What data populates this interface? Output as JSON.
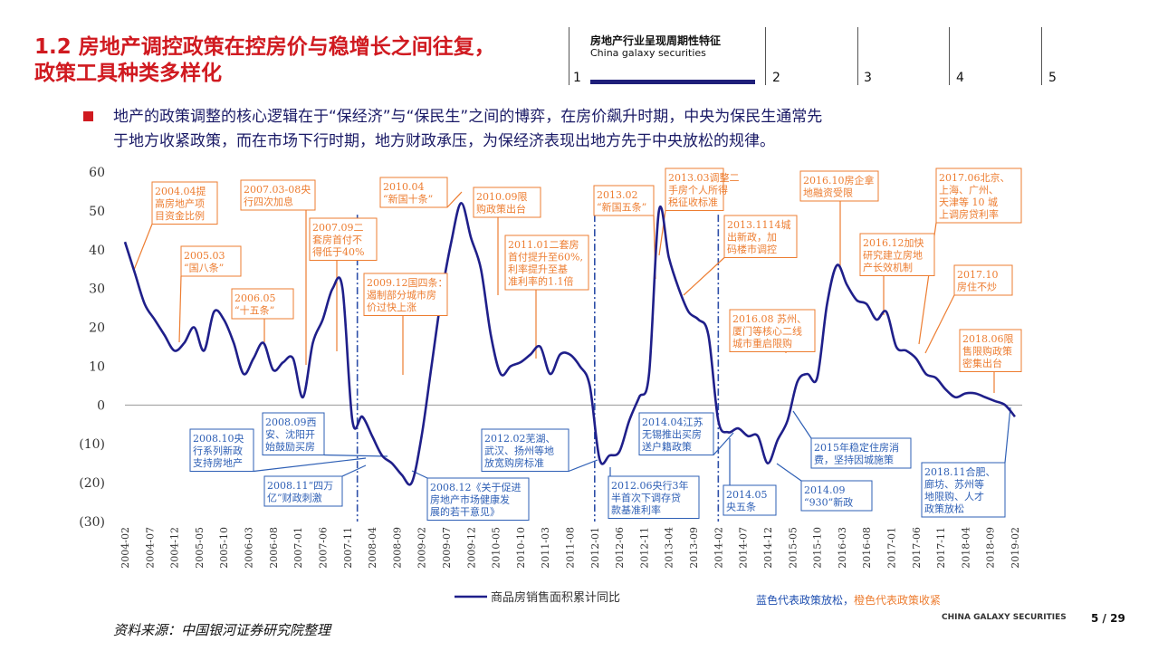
{
  "header": {
    "title_line1": "1.2 房地产调控政策在控房价与稳增长之间往复，",
    "title_line2": "政策工具种类多样化",
    "nav_title": "房地产行业呈现周期性特征",
    "nav_subtitle": "China galaxy securities",
    "nav_numbers": [
      "1",
      "2",
      "3",
      "4",
      "5"
    ]
  },
  "body": {
    "paragraph_line1": "地产的政策调整的核心逻辑在于“保经济”与“保民生”之间的博弈，在房价飙升时期，中央为保民生通常先",
    "paragraph_line2": "于地方收紧政策，而在市场下行时期，地方财政承压，为保经济表现出地方先于中央放松的规律。"
  },
  "footer": {
    "source": "资料来源：中国银河证券研究院整理",
    "note_blue": "蓝色代表政策放松，",
    "note_orange": "橙色代表政策收紧",
    "brand": "CHINA GALAXY SECURITIES",
    "page": "5  /  29"
  },
  "colors": {
    "line": "#1f1f8a",
    "tighten": "#ed7d31",
    "loosen": "#2e5fb5",
    "title": "#d01a20"
  },
  "chart_data": {
    "type": "line",
    "ylim": [
      -30,
      60
    ],
    "yticks": [
      60,
      50,
      40,
      30,
      20,
      10,
      0,
      -10,
      -20,
      -30
    ],
    "ytick_labels": [
      "60",
      "50",
      "40",
      "30",
      "20",
      "10",
      "0",
      "(10)",
      "(20)",
      "(30)"
    ],
    "x_tick_labels": [
      "2004-02",
      "2004-07",
      "2004-12",
      "2005-05",
      "2005-10",
      "2006-03",
      "2006-08",
      "2007-01",
      "2007-06",
      "2007-11",
      "2008-04",
      "2008-09",
      "2009-02",
      "2009-07",
      "2009-12",
      "2010-05",
      "2010-10",
      "2011-03",
      "2011-08",
      "2012-01",
      "2012-06",
      "2012-11",
      "2013-04",
      "2013-09",
      "2014-02",
      "2014-07",
      "2014-12",
      "2015-05",
      "2015-10",
      "2016-03",
      "2016-08",
      "2017-01",
      "2017-06",
      "2017-11",
      "2018-04",
      "2018-09",
      "2019-02"
    ],
    "legend": "商品房销售面积累计同比",
    "series": [
      {
        "name": "商品房销售面积累计同比",
        "x": [
          "2004-02",
          "2004-04",
          "2004-06",
          "2004-08",
          "2004-10",
          "2004-12",
          "2005-02",
          "2005-04",
          "2005-06",
          "2005-08",
          "2005-10",
          "2005-12",
          "2006-02",
          "2006-04",
          "2006-06",
          "2006-08",
          "2006-10",
          "2006-12",
          "2007-02",
          "2007-04",
          "2007-06",
          "2007-08",
          "2007-10",
          "2007-12",
          "2008-02",
          "2008-04",
          "2008-06",
          "2008-08",
          "2008-10",
          "2008-12",
          "2009-02",
          "2009-04",
          "2009-06",
          "2009-08",
          "2009-10",
          "2009-12",
          "2010-02",
          "2010-04",
          "2010-06",
          "2010-08",
          "2010-10",
          "2010-12",
          "2011-02",
          "2011-04",
          "2011-06",
          "2011-08",
          "2011-10",
          "2011-12",
          "2012-02",
          "2012-04",
          "2012-06",
          "2012-08",
          "2012-10",
          "2012-12",
          "2013-02",
          "2013-04",
          "2013-06",
          "2013-08",
          "2013-10",
          "2013-12",
          "2014-02",
          "2014-04",
          "2014-06",
          "2014-08",
          "2014-10",
          "2014-12",
          "2015-02",
          "2015-04",
          "2015-06",
          "2015-08",
          "2015-10",
          "2015-12",
          "2016-02",
          "2016-04",
          "2016-06",
          "2016-08",
          "2016-10",
          "2016-12",
          "2017-02",
          "2017-04",
          "2017-06",
          "2017-08",
          "2017-10",
          "2017-12",
          "2018-02",
          "2018-04",
          "2018-06",
          "2018-08",
          "2018-10",
          "2018-12",
          "2019-02"
        ],
        "values": [
          42,
          34,
          26,
          22,
          18,
          14,
          16,
          20,
          14,
          24,
          22,
          16,
          8,
          12,
          16,
          9,
          11,
          12,
          2,
          16,
          22,
          30,
          30,
          -4,
          -3,
          -8,
          -13,
          -15,
          -18,
          -20,
          -8,
          10,
          28,
          42,
          52,
          43,
          35,
          18,
          8,
          10,
          11,
          13,
          15,
          8,
          13,
          13,
          10,
          5,
          -14,
          -13,
          -12,
          -4,
          2,
          8,
          50,
          38,
          30,
          24,
          22,
          18,
          -4,
          -7,
          -6,
          -8,
          -8,
          -15,
          -9,
          -4,
          6,
          8,
          7,
          26,
          36,
          31,
          27,
          26,
          22,
          24,
          15,
          14,
          12,
          8,
          7,
          4,
          2,
          3,
          3,
          2,
          1,
          0,
          -3
        ]
      }
    ],
    "annotations_tighten": [
      {
        "lines": [
          "2004.04提",
          "高房地产项",
          "目资金比例"
        ]
      },
      {
        "lines": [
          "2005.03",
          "“国八条”"
        ]
      },
      {
        "lines": [
          "2006.05",
          "“十五条”"
        ]
      },
      {
        "lines": [
          "2007.03-08央",
          "行四次加息"
        ]
      },
      {
        "lines": [
          "2007.09二",
          "套房首付不",
          "得低于40%"
        ]
      },
      {
        "lines": [
          "2009.12国四条：",
          "遏制部分城市房",
          "价过快上涨"
        ]
      },
      {
        "lines": [
          "2010.04",
          "“新国十条”"
        ]
      },
      {
        "lines": [
          "2010.09限",
          "购政策出台"
        ]
      },
      {
        "lines": [
          "2011.01二套房",
          "首付提升至60%,",
          "利率提升至基",
          "准利率的1.1倍"
        ]
      },
      {
        "lines": [
          "2013.02",
          "“新国五条”"
        ]
      },
      {
        "lines": [
          "2013.03调整二",
          "手房个人所得",
          "税征收标准"
        ]
      },
      {
        "lines": [
          "2013.1114城",
          "出新政，加",
          "码楼市调控"
        ]
      },
      {
        "lines": [
          "2016.08 苏州、",
          "厦门等核心二线",
          "城市重启限购"
        ]
      },
      {
        "lines": [
          "2016.10房企拿",
          "地融资受限"
        ]
      },
      {
        "lines": [
          "2016.12加快",
          "研究建立房地",
          "产长效机制"
        ]
      },
      {
        "lines": [
          "2017.06北京、",
          "上海、广州、",
          "天津等 10 城",
          "上调房贷利率"
        ]
      },
      {
        "lines": [
          "2017.10",
          "房住不炒"
        ]
      },
      {
        "lines": [
          "2018.06限",
          "售限购政策",
          "密集出台"
        ]
      }
    ],
    "annotations_loosen": [
      {
        "lines": [
          "2008.10央",
          "行系列新政",
          "支持房地产"
        ]
      },
      {
        "lines": [
          "2008.09西",
          "安、沈阳开",
          "始鼓励买房"
        ]
      },
      {
        "lines": [
          "2008.11“四万",
          "亿”财政刺激"
        ]
      },
      {
        "lines": [
          "2008.12《关于促进",
          "房地产市场健康发",
          "展的若干意见》"
        ]
      },
      {
        "lines": [
          "2012.02芜湖、",
          "武汉、扬州等地",
          "放宽购房标准"
        ]
      },
      {
        "lines": [
          "2012.06央行3年",
          "半首次下调存贷",
          "款基准利率"
        ]
      },
      {
        "lines": [
          "2014.04江苏",
          "无锡推出买房",
          "送户籍政策"
        ]
      },
      {
        "lines": [
          "2014.05",
          "央五条"
        ]
      },
      {
        "lines": [
          "2014.09",
          "“930”新政"
        ]
      },
      {
        "lines": [
          "2015年稳定住房消",
          "费，坚持因城施策"
        ]
      },
      {
        "lines": [
          "2018.11合肥、",
          "廊坊、苏州等",
          "地限购、人才",
          "政策放松"
        ]
      }
    ]
  }
}
